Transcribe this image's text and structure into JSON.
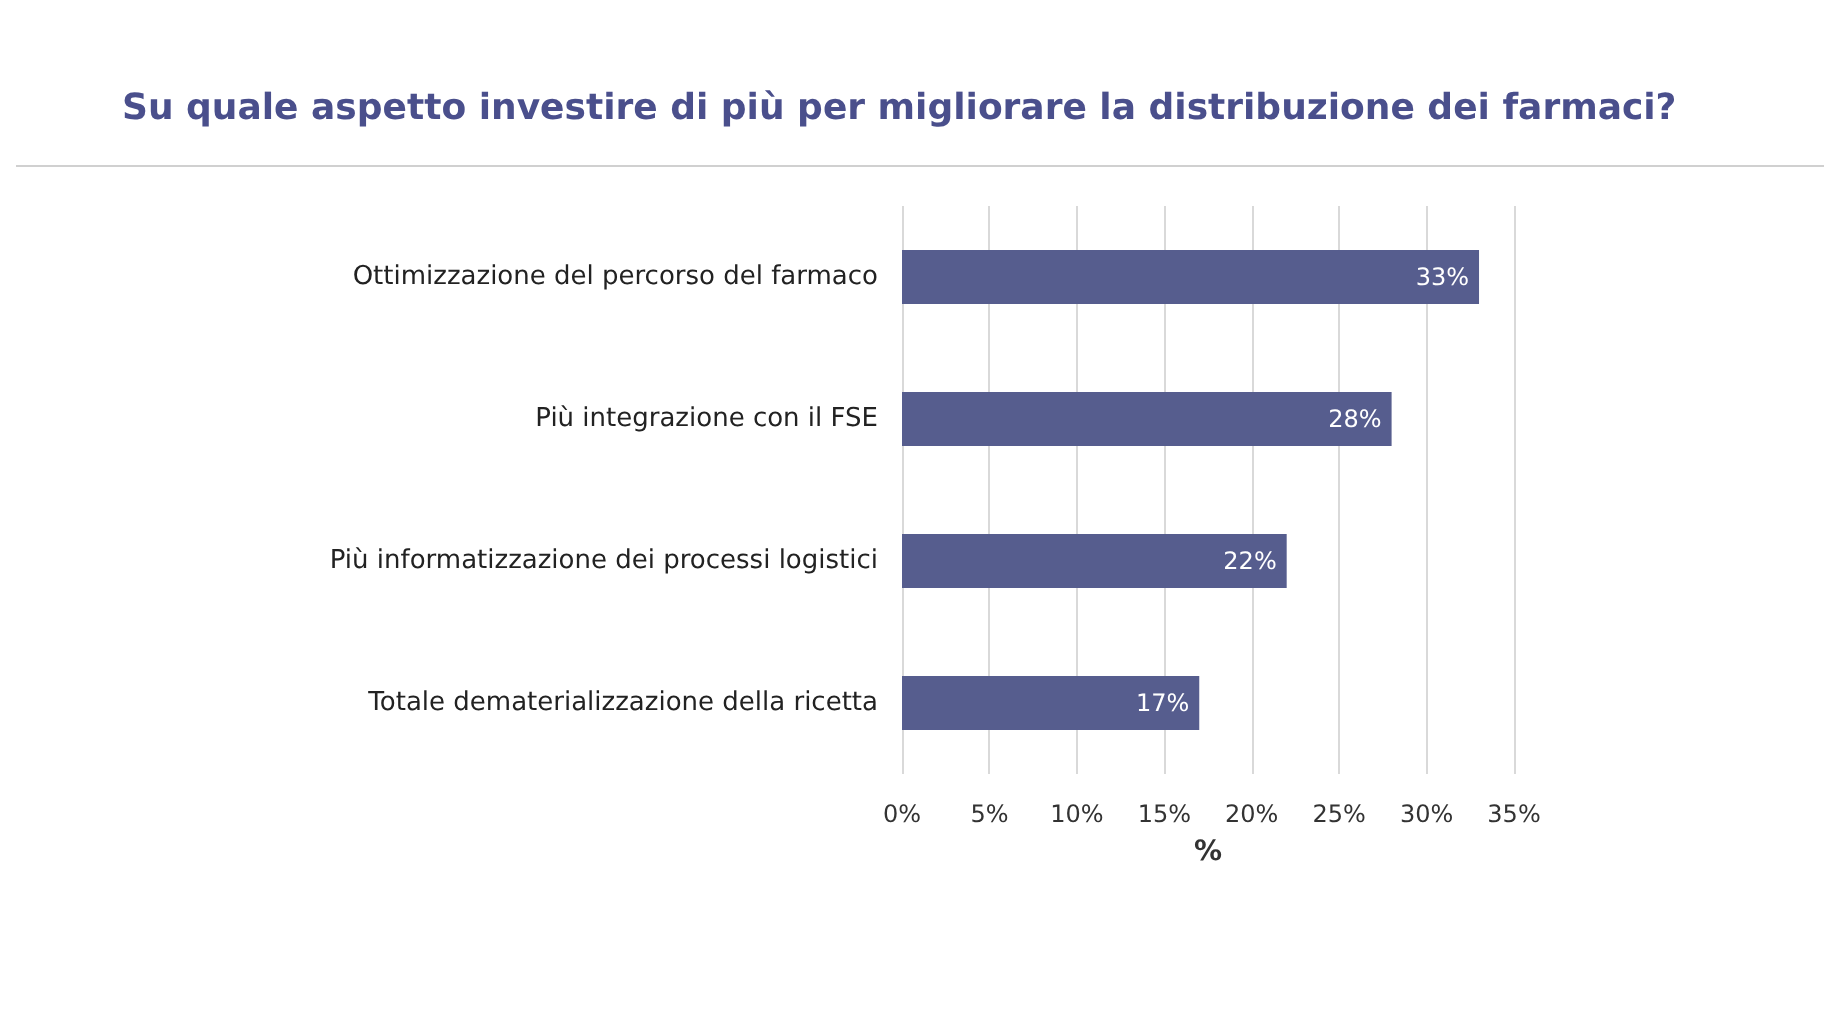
{
  "chart_data": {
    "type": "bar",
    "orientation": "horizontal",
    "title": "Su quale aspetto investire di più per migliorare la distribuzione dei farmaci?",
    "xlabel": "%",
    "categories": [
      "Ottimizzazione del percorso del farmaco",
      "Più integrazione con il FSE",
      "Più informatizzazione dei processi logistici",
      "Totale dematerializzazione della ricetta"
    ],
    "values": [
      33,
      28,
      22,
      17
    ],
    "color": "#565d8e",
    "value_labels": [
      "33%",
      "28%",
      "22%",
      "17%"
    ],
    "xlim": [
      0,
      35
    ],
    "xticks": [
      {
        "value": 0,
        "label": "0%"
      },
      {
        "value": 5,
        "label": "5%"
      },
      {
        "value": 10,
        "label": "10%"
      },
      {
        "value": 15,
        "label": "15%"
      },
      {
        "value": 20,
        "label": "20%"
      },
      {
        "value": 25,
        "label": "25%"
      },
      {
        "value": 30,
        "label": "30%"
      },
      {
        "value": 35,
        "label": "35%"
      }
    ],
    "grid": "x"
  }
}
